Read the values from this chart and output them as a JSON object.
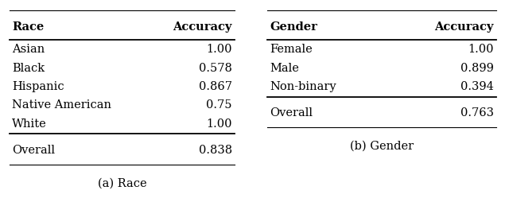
{
  "table1": {
    "caption": "(a) Race",
    "col1_header": "Race",
    "col2_header": "Accuracy",
    "rows": [
      [
        "Asian",
        "1.00"
      ],
      [
        "Black",
        "0.578"
      ],
      [
        "Hispanic",
        "0.867"
      ],
      [
        "Native American",
        "0.75"
      ],
      [
        "White",
        "1.00"
      ]
    ],
    "overall": [
      "Overall",
      "0.838"
    ]
  },
  "table2": {
    "caption": "(b) Gender",
    "col1_header": "Gender",
    "col2_header": "Accuracy",
    "rows": [
      [
        "Female",
        "1.00"
      ],
      [
        "Male",
        "0.899"
      ],
      [
        "Non-binary",
        "0.394"
      ]
    ],
    "overall": [
      "Overall",
      "0.763"
    ]
  },
  "font_size": 10.5,
  "header_font_size": 10.5,
  "caption_font_size": 10.5,
  "bg_color": "#ffffff",
  "text_color": "#000000",
  "line_color": "#000000",
  "lw_thin": 0.8,
  "lw_thick": 1.3
}
